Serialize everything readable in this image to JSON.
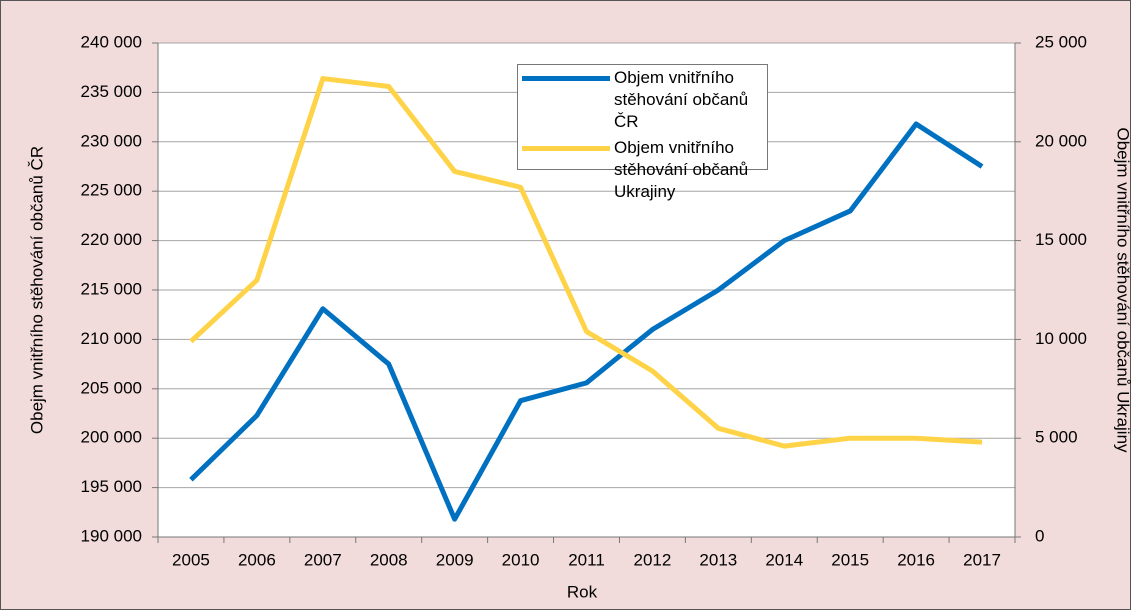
{
  "chart_data": {
    "type": "line",
    "x_label": "Rok",
    "y_label": "Obejm vnitřního stěhování občanů ČR",
    "y2_label": "Obejm vnitřního stěhování občanů Ukrajiny",
    "categories": [
      "2005",
      "2006",
      "2007",
      "2008",
      "2009",
      "2010",
      "2011",
      "2012",
      "2013",
      "2014",
      "2015",
      "2016",
      "2017"
    ],
    "series": [
      {
        "name": "Objem vnitřního stěhování občanů ČR",
        "color": "#0070c0",
        "values": [
          195800,
          202300,
          213100,
          207500,
          191800,
          203800,
          205600,
          211000,
          215000,
          220000,
          223000,
          231800,
          227500
        ]
      },
      {
        "name": "Objem vnitřního stěhování občanů Ukrajiny",
        "color": "#ffd347",
        "axis": "y2",
        "values": [
          9900,
          13000,
          23200,
          22800,
          18500,
          17700,
          10400,
          8400,
          5500,
          4600,
          5000,
          5000,
          4800
        ]
      }
    ],
    "ylim": [
      190000,
      240000
    ],
    "yticks": [
      {
        "value": 190000,
        "label": "190 000"
      },
      {
        "value": 195000,
        "label": "195 000"
      },
      {
        "value": 200000,
        "label": "200 000"
      },
      {
        "value": 205000,
        "label": "205 000"
      },
      {
        "value": 210000,
        "label": "210 000"
      },
      {
        "value": 215000,
        "label": "215 000"
      },
      {
        "value": 220000,
        "label": "220 000"
      },
      {
        "value": 225000,
        "label": "225 000"
      },
      {
        "value": 230000,
        "label": "230 000"
      },
      {
        "value": 235000,
        "label": "235 000"
      },
      {
        "value": 240000,
        "label": "240 000"
      }
    ],
    "y2lim": [
      0,
      25000
    ],
    "y2ticks": [
      0,
      {
        "value": 5000,
        "label": "5 000"
      },
      {
        "value": 10000,
        "label": "10 000"
      },
      {
        "value": 15000,
        "label": "15 000"
      },
      {
        "value": 20000,
        "label": "20 000"
      },
      {
        "value": 25000,
        "label": "25 000"
      }
    ],
    "grid": true
  }
}
